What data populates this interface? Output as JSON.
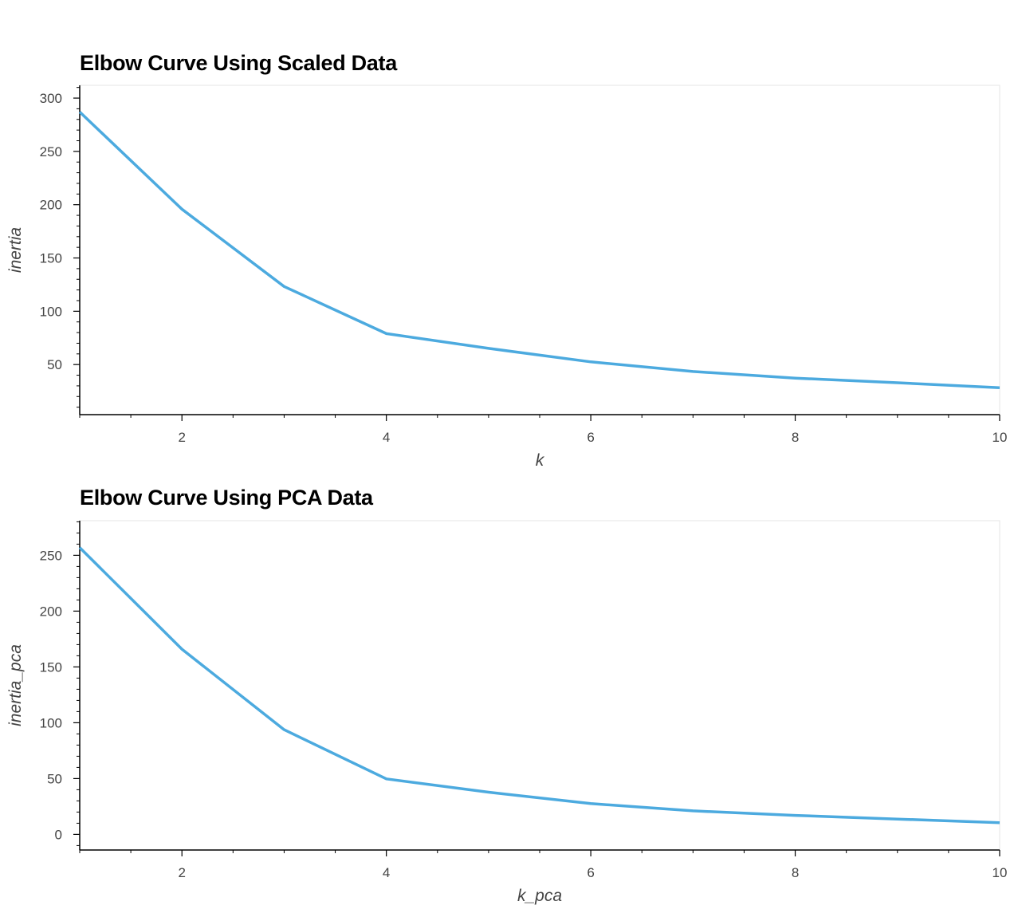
{
  "chart_data": [
    {
      "type": "line",
      "title": "Elbow Curve Using Scaled Data",
      "xlabel": "k",
      "ylabel": "inertia",
      "x": [
        1,
        2,
        3,
        4,
        5,
        6,
        7,
        8,
        9,
        10
      ],
      "series": [
        {
          "values": [
            287,
            195.8,
            123.2,
            79.0,
            65.2,
            52.5,
            43.5,
            37.3,
            32.9,
            28.2
          ]
        }
      ],
      "xlim": [
        1,
        10
      ],
      "ylim": [
        3,
        312
      ],
      "xticks": [
        2,
        4,
        6,
        8,
        10
      ],
      "yticks": [
        50,
        100,
        150,
        200,
        250,
        300
      ],
      "grid": false,
      "line_color": "#4CAADF"
    },
    {
      "type": "line",
      "title": "Elbow Curve Using PCA Data",
      "xlabel": "k_pca",
      "ylabel": "inertia_pca",
      "x": [
        1,
        2,
        3,
        4,
        5,
        6,
        7,
        8,
        9,
        10
      ],
      "series": [
        {
          "values": [
            256.9,
            165.9,
            93.8,
            49.7,
            37.8,
            27.6,
            21.1,
            17.0,
            13.7,
            10.5
          ]
        }
      ],
      "xlim": [
        1,
        10
      ],
      "ylim": [
        -14,
        281
      ],
      "xticks": [
        2,
        4,
        6,
        8,
        10
      ],
      "yticks": [
        0,
        50,
        100,
        150,
        200,
        250
      ],
      "grid": false,
      "line_color": "#4CAADF"
    }
  ]
}
